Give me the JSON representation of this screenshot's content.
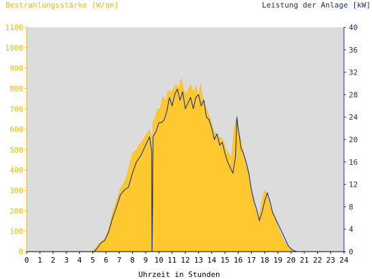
{
  "chart_data": {
    "type": "area",
    "left_axis_title": "Bestrahlungsstärke [W/qm]",
    "right_axis_title": "Leistung der Anlage [kW]",
    "xlabel": "Uhrzeit in Stunden",
    "xlim": [
      0,
      24
    ],
    "ylim_left": [
      0,
      1100
    ],
    "ylim_right": [
      0,
      40
    ],
    "x_ticks": [
      "0",
      "1",
      "2",
      "3",
      "4",
      "5",
      "6",
      "7",
      "8",
      "9",
      "10",
      "11",
      "12",
      "13",
      "14",
      "15",
      "16",
      "17",
      "18",
      "19",
      "20",
      "21",
      "22",
      "23",
      "24"
    ],
    "y_left_ticks": [
      "0",
      "100",
      "200",
      "300",
      "400",
      "500",
      "600",
      "700",
      "800",
      "900",
      "1000",
      "1100"
    ],
    "y_right_ticks": [
      "0",
      "4",
      "8",
      "12",
      "16",
      "20",
      "24",
      "28",
      "32",
      "36",
      "40"
    ],
    "grid": false,
    "colors": {
      "irradiance_fill": "#ffc82e",
      "power_line": "#1a2f7a",
      "plot_background": "#dcdcdc",
      "left_axis": "#f5b800",
      "right_axis": "#1a2f7a"
    },
    "series": [
      {
        "axis": "left",
        "style": "area",
        "x": [
          0,
          4.8,
          5.0,
          5.3,
          5.6,
          5.9,
          6.2,
          6.5,
          6.8,
          7.1,
          7.4,
          7.7,
          8.0,
          8.3,
          8.6,
          8.9,
          9.1,
          9.3,
          9.45,
          9.5,
          9.55,
          9.7,
          9.9,
          10.1,
          10.3,
          10.5,
          10.7,
          10.9,
          11.1,
          11.3,
          11.5,
          11.7,
          11.85,
          12.0,
          12.2,
          12.4,
          12.6,
          12.8,
          13.0,
          13.15,
          13.3,
          13.5,
          13.7,
          13.9,
          14.1,
          14.3,
          14.5,
          14.7,
          14.9,
          15.1,
          15.3,
          15.5,
          15.7,
          15.85,
          16.0,
          16.2,
          16.4,
          16.6,
          16.8,
          17.0,
          17.2,
          17.4,
          17.6,
          17.8,
          18.0,
          18.2,
          18.4,
          18.6,
          18.8,
          19.0,
          19.2,
          19.4,
          19.6,
          19.8,
          20.0,
          20.2,
          20.4,
          20.6,
          24
        ],
        "values": [
          0,
          0,
          5,
          25,
          50,
          60,
          110,
          190,
          250,
          310,
          340,
          400,
          480,
          500,
          530,
          560,
          580,
          600,
          560,
          0,
          640,
          650,
          700,
          700,
          760,
          740,
          790,
          780,
          800,
          820,
          800,
          850,
          800,
          770,
          790,
          820,
          780,
          810,
          760,
          820,
          760,
          720,
          680,
          650,
          600,
          580,
          560,
          560,
          540,
          500,
          480,
          460,
          600,
          650,
          580,
          550,
          480,
          420,
          380,
          290,
          230,
          190,
          170,
          250,
          300,
          280,
          220,
          200,
          160,
          120,
          90,
          60,
          40,
          20,
          10,
          5,
          2,
          0,
          0
        ]
      },
      {
        "axis": "right",
        "style": "line",
        "x": [
          0,
          5.1,
          5.3,
          5.6,
          5.9,
          6.2,
          6.5,
          6.8,
          7.1,
          7.4,
          7.7,
          8.0,
          8.3,
          8.6,
          8.9,
          9.1,
          9.3,
          9.45,
          9.48,
          9.52,
          9.56,
          9.8,
          10.0,
          10.2,
          10.4,
          10.6,
          10.8,
          11.0,
          11.2,
          11.4,
          11.6,
          11.8,
          12.0,
          12.2,
          12.4,
          12.6,
          12.8,
          13.0,
          13.2,
          13.4,
          13.6,
          13.8,
          14.0,
          14.2,
          14.4,
          14.6,
          14.8,
          15.0,
          15.2,
          15.4,
          15.6,
          15.8,
          15.9,
          16.0,
          16.1,
          16.2,
          16.4,
          16.6,
          16.8,
          17.0,
          17.2,
          17.4,
          17.6,
          17.8,
          18.0,
          18.2,
          18.4,
          18.6,
          18.8,
          19.0,
          19.2,
          19.4,
          19.6,
          19.8,
          20.0,
          20.2,
          20.4,
          20.5,
          24
        ],
        "values": [
          0,
          0,
          0.5,
          1.5,
          2.0,
          3.5,
          6.0,
          8.0,
          10.2,
          11.0,
          11.5,
          14.0,
          16.0,
          17.0,
          18.5,
          19.5,
          20.5,
          18.0,
          0,
          8.0,
          20.5,
          21.5,
          23.0,
          23.0,
          23.5,
          25.0,
          27.5,
          26.0,
          28.0,
          29.0,
          27.0,
          28.5,
          25.5,
          26.5,
          27.5,
          25.5,
          27.5,
          28.0,
          26.0,
          27.0,
          24.0,
          23.5,
          22.0,
          20.0,
          21.0,
          19.0,
          19.5,
          17.5,
          16.0,
          15.0,
          14.0,
          17.0,
          24.0,
          22.0,
          20.5,
          18.5,
          17.5,
          16.0,
          14.0,
          11.0,
          9.0,
          7.5,
          5.5,
          7.0,
          9.0,
          10.5,
          9.0,
          7.0,
          6.0,
          5.0,
          4.0,
          3.0,
          2.0,
          1.0,
          0.5,
          0.2,
          0,
          0,
          0
        ]
      }
    ]
  }
}
